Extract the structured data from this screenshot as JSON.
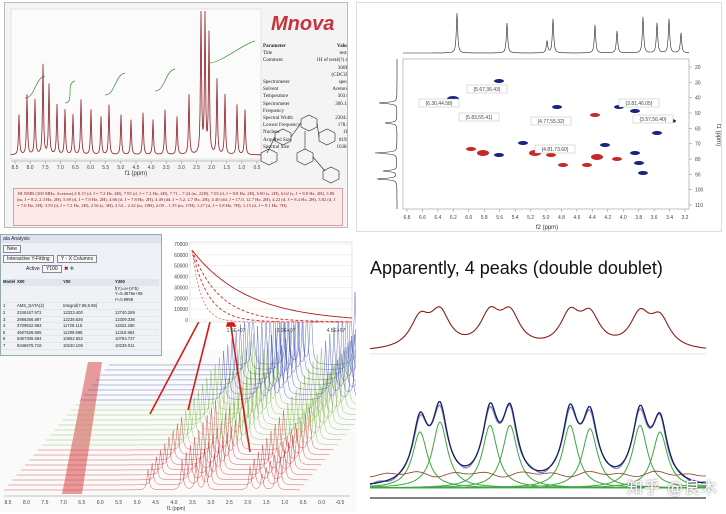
{
  "mnova": {
    "logo": "Mnova",
    "params_header": [
      "Parameter",
      "Value"
    ],
    "params": [
      [
        "Title",
        "test4"
      ],
      [
        "Comment",
        "1H of test4(?) at 300K"
      ],
      [
        "",
        "(CDCl3)"
      ],
      [
        "Spectrometer",
        "spect"
      ],
      [
        "Solvent",
        "Acetone"
      ],
      [
        "Temperature",
        "303.0"
      ],
      [
        "Spectrometer",
        "300.13"
      ],
      [
        "Frequency",
        ""
      ],
      [
        "Spectral Width",
        "2304.8"
      ],
      [
        "Lowest Frequency",
        "178.8"
      ],
      [
        "Nucleus",
        "1H"
      ],
      [
        "Acquired Size",
        "8192"
      ],
      [
        "Spectral Size",
        "16384"
      ]
    ],
    "axis_label": "f1 (ppm)",
    "ticks": [
      "8.5",
      "8.0",
      "7.5",
      "7.0",
      "6.5",
      "6.0",
      "5.5",
      "5.0",
      "4.5",
      "4.0",
      "3.5",
      "3.0",
      "2.5",
      "2.0",
      "1.5",
      "1.0",
      "0.5"
    ],
    "nmr_text": "1H NMR (300 MHz, Acetone) δ 8.15 (d, J = 7.2 Hz, 4H), 7.95 (d, J = 7.2 Hz, 4H), 7.71 – 7.24 (m, 22H), 7.03 (d, J = 8.8 Hz, 2H), 6.80 (s, 2H), 6.62 (s, J = 8.8 Hz, 2H), 5.80 (m, J = 8.2, 2.3 Hz, 2H), 5.69 (d, J = 7.0 Hz, 2H), 4.66 (d, J = 7.8 Hz, 2H), 4.49 (dd, J = 5.2, 2.7 Hz, 2H), 4.40 (dd, J = 17.0, 12.7 Hz, 2H), 4.22 (d, J = 8.4 Hz, 2H), 3.82 (d, J = 7.0 Hz, 2H), 3.59 (d, J = 7.2 Hz, 2H), 2.56 (s, 3H), 2.54 – 2.32 (m, 18H), 2.09 – 1.55 (m, 17H), 1.27 (d, J = 5.8 Hz, 7H), 1.15 (d, J = 9.1 Hz, 7H)."
  },
  "hsqc": {
    "xlabel": "f2 (ppm)",
    "ylabel": "f1 (ppm)",
    "xticks": [
      "6.8",
      "6.6",
      "6.4",
      "6.2",
      "6.0",
      "5.8",
      "5.6",
      "5.4",
      "5.2",
      "5.0",
      "4.8",
      "4.6",
      "4.4",
      "4.2",
      "4.0",
      "3.8",
      "3.6",
      "3.4",
      "3.2"
    ],
    "yticks": [
      "20",
      "30",
      "40",
      "50",
      "60",
      "70",
      "80",
      "90",
      "100",
      "110"
    ],
    "annotations": [
      "{6.30,44.58}",
      "{5.67,36.43}",
      "{5.83,55.41}",
      "{4.77,55.32}",
      "{3.81,46.05}",
      "{3.57,56.40}",
      "{4.81,73.60}"
    ]
  },
  "analysis": {
    "dialog_title": "ata Analysis",
    "buttons": [
      "New",
      "Interactive Y-Fitting",
      "Y - X Columns",
      "Active"
    ],
    "active_value": "Y100",
    "columns": [
      "Model",
      "X00",
      "Y00",
      "Y300"
    ],
    "formula": "f(Y)=a+(X*b) Y=5.4875e+08 r²=0.9999",
    "rows": [
      [
        "1",
        "AMS_DATA(2)",
        "Integral(7.68,6.96)",
        ""
      ],
      [
        "2",
        "2346167.972",
        "12323.400",
        "12740.269"
      ],
      [
        "3",
        "2986266.897",
        "12238.626",
        "12309.336"
      ],
      [
        "4",
        "3709632.983",
        "11725.115",
        "11822.260"
      ],
      [
        "5",
        "4507528.855",
        "11299.698",
        "11316.962"
      ],
      [
        "6",
        "5367306.594",
        "10652.552",
        "10784.737"
      ],
      [
        "7",
        "6346676.719",
        "10240.108",
        "10236.011"
      ]
    ],
    "decay_yticks": [
      "70000",
      "60000",
      "50000",
      "40000",
      "30000",
      "20000",
      "10000",
      "0"
    ],
    "decay_xticks": [
      "1.5E+07",
      "3.0E+07",
      "4.5E+07"
    ],
    "stack_xticks": [
      "8.5",
      "8.0",
      "7.5",
      "7.0",
      "6.5",
      "6.0",
      "5.5",
      "5.0",
      "4.5",
      "4.0",
      "3.5",
      "3.0",
      "2.5",
      "2.0",
      "1.5",
      "1.0",
      "0.5",
      "0.0",
      "-0.5"
    ],
    "stack_xlabel": "f1 (ppm)"
  },
  "peaks": {
    "headline": "Apparently, 4 peaks (double doublet)",
    "watermark": "知乎 @良木"
  }
}
